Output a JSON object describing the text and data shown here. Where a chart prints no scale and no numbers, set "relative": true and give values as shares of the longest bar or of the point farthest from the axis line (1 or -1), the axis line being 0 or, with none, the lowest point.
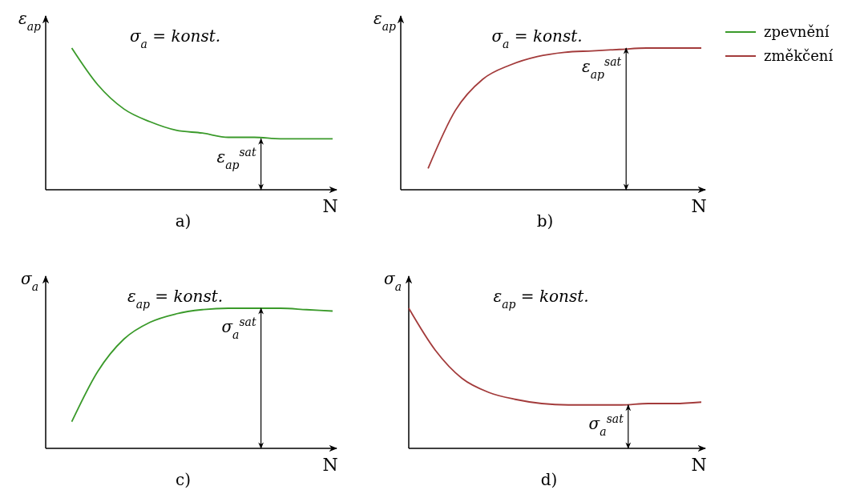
{
  "chart_data": [
    {
      "type": "line",
      "title": "σ$_{a}$ = konst.",
      "xlabel": "N",
      "ylabel": "ε$_{ap}$",
      "relative": true,
      "legend": "right",
      "categories": [
        null,
        null,
        null,
        null,
        null,
        null,
        null,
        null,
        null,
        null,
        null,
        null
      ],
      "series": [
        {
          "name": "zpevnění",
          "color": "#3a9a2a",
          "values": [
            null,
            1,
            0.74,
            0.57,
            0.48,
            0.42,
            0.4,
            0.37,
            0.37,
            0.36,
            0.36,
            0.36
          ]
        }
      ],
      "annotations": [
        {
          "text": "ε$_{ap}$$^{sat}$",
          "y": 0.36
        },
        "a)"
      ]
    },
    {
      "type": "line",
      "title": "σ$_{a}$ = konst.",
      "xlabel": "N",
      "ylabel": "ε$_{ap}$",
      "relative": true,
      "legend": "right",
      "categories": [
        null,
        null,
        null,
        null,
        null,
        null,
        null,
        null,
        null,
        null,
        null,
        null
      ],
      "series": [
        {
          "name": "změkčení",
          "color": "#a33b3b",
          "values": [
            null,
            0.15,
            0.56,
            0.78,
            0.88,
            0.94,
            0.97,
            0.98,
            0.99,
            1,
            1,
            1
          ]
        }
      ],
      "annotations": [
        {
          "text": "ε$_{ap}$$^{sat}$",
          "y": 1
        },
        "b)"
      ]
    },
    {
      "type": "line",
      "title": "ε$_{ap}$ = konst.",
      "xlabel": "N",
      "ylabel": "σ$_{a}$",
      "relative": true,
      "categories": [
        null,
        null,
        null,
        null,
        null,
        null,
        null,
        null,
        null,
        null,
        null,
        null
      ],
      "series": [
        {
          "color": "#3a9a2a",
          "values": [
            null,
            0.19,
            0.55,
            0.78,
            0.9,
            0.96,
            0.99,
            1,
            1,
            1,
            0.99,
            0.98
          ]
        }
      ],
      "annotations": [
        {
          "text": "σ$_{a}$$^{sat}$",
          "y": 1
        },
        "c)"
      ]
    },
    {
      "type": "line",
      "title": "ε$_{ap}$ = konst.",
      "xlabel": "N",
      "ylabel": "σ$_{a}$",
      "relative": true,
      "categories": [
        null,
        null,
        null,
        null,
        null,
        null,
        null,
        null,
        null,
        null,
        null,
        null
      ],
      "series": [
        {
          "color": "#a33b3b",
          "values": [
            1,
            0.7,
            0.5,
            0.4,
            0.35,
            0.32,
            0.31,
            0.31,
            0.31,
            0.32,
            0.32,
            0.33
          ]
        }
      ],
      "annotations": [
        {
          "text": "σ$_{a}$$^{sat}$",
          "y": 0.31
        },
        "d)"
      ]
    }
  ]
}
